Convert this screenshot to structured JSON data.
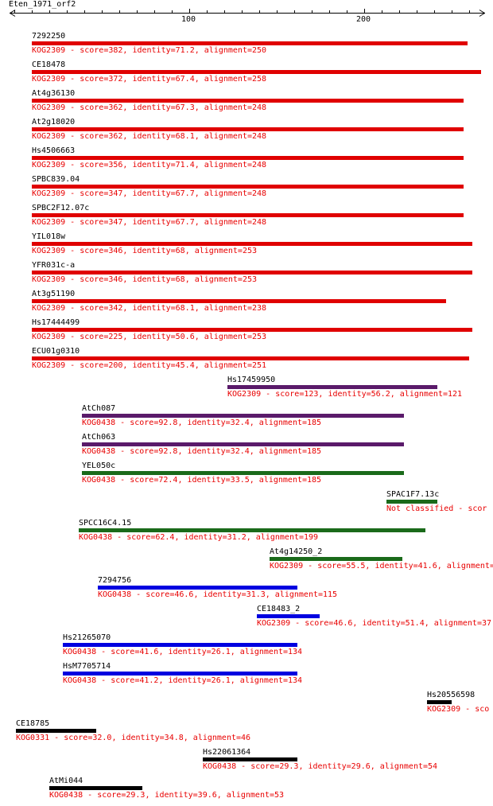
{
  "query": {
    "name": "Eten_1971_orf2",
    "ruler": {
      "min": 1,
      "max": 265,
      "ticks": [
        100,
        200
      ],
      "minor_step": 10
    }
  },
  "colors": {
    "label": "#000000",
    "annotation": "#e80000",
    "bars": {
      "red": "#e00000",
      "purple": "#5a1a6a",
      "green": "#1a6a1a",
      "blue": "#0000e0",
      "black": "#000000"
    }
  },
  "hits": [
    {
      "id": "7292250",
      "kog": "KOG2309",
      "score": "382",
      "identity": "71.2",
      "alignment": "250",
      "start": 10,
      "end": 259,
      "color": "red"
    },
    {
      "id": "CE18478",
      "kog": "KOG2309",
      "score": "372",
      "identity": "67.4",
      "alignment": "258",
      "start": 10,
      "end": 267,
      "color": "red"
    },
    {
      "id": "At4g36130",
      "kog": "KOG2309",
      "score": "362",
      "identity": "67.3",
      "alignment": "248",
      "start": 10,
      "end": 257,
      "color": "red"
    },
    {
      "id": "At2g18020",
      "kog": "KOG2309",
      "score": "362",
      "identity": "68.1",
      "alignment": "248",
      "start": 10,
      "end": 257,
      "color": "red"
    },
    {
      "id": "Hs4506663",
      "kog": "KOG2309",
      "score": "356",
      "identity": "71.4",
      "alignment": "248",
      "start": 10,
      "end": 257,
      "color": "red"
    },
    {
      "id": "SPBC839.04",
      "kog": "KOG2309",
      "score": "347",
      "identity": "67.7",
      "alignment": "248",
      "start": 10,
      "end": 257,
      "color": "red"
    },
    {
      "id": "SPBC2F12.07c",
      "kog": "KOG2309",
      "score": "347",
      "identity": "67.7",
      "alignment": "248",
      "start": 10,
      "end": 257,
      "color": "red"
    },
    {
      "id": "YIL018w",
      "kog": "KOG2309",
      "score": "346",
      "identity": "68",
      "alignment": "253",
      "start": 10,
      "end": 262,
      "color": "red"
    },
    {
      "id": "YFR031c-a",
      "kog": "KOG2309",
      "score": "346",
      "identity": "68",
      "alignment": "253",
      "start": 10,
      "end": 262,
      "color": "red"
    },
    {
      "id": "At3g51190",
      "kog": "KOG2309",
      "score": "342",
      "identity": "68.1",
      "alignment": "238",
      "start": 10,
      "end": 247,
      "color": "red"
    },
    {
      "id": "Hs17444499",
      "kog": "KOG2309",
      "score": "225",
      "identity": "50.6",
      "alignment": "253",
      "start": 10,
      "end": 262,
      "color": "red"
    },
    {
      "id": "ECU01g0310",
      "kog": "KOG2309",
      "score": "200",
      "identity": "45.4",
      "alignment": "251",
      "start": 10,
      "end": 260,
      "color": "red"
    },
    {
      "id": "Hs17459950",
      "kog": "KOG2309",
      "score": "123",
      "identity": "56.2",
      "alignment": "121",
      "start": 122,
      "end": 242,
      "color": "purple"
    },
    {
      "id": "AtCh087",
      "kog": "KOG0438",
      "score": "92.8",
      "identity": "32.4",
      "alignment": "185",
      "start": 39,
      "end": 223,
      "color": "purple"
    },
    {
      "id": "AtCh063",
      "kog": "KOG0438",
      "score": "92.8",
      "identity": "32.4",
      "alignment": "185",
      "start": 39,
      "end": 223,
      "color": "purple"
    },
    {
      "id": "YEL050c",
      "kog": "KOG0438",
      "score": "72.4",
      "identity": "33.5",
      "alignment": "185",
      "start": 39,
      "end": 223,
      "color": "green"
    },
    {
      "id": "SPAC1F7.13c",
      "text": "Not classified - scor",
      "start": 213,
      "end": 242,
      "color": "green"
    },
    {
      "id": "SPCC16C4.15",
      "kog": "KOG0438",
      "score": "62.4",
      "identity": "31.2",
      "alignment": "199",
      "start": 37,
      "end": 235,
      "color": "green"
    },
    {
      "id": "At4g14250_2",
      "text": "KOG2309 - score=55.5, identity=41.6, alignment=",
      "start": 146,
      "end": 222,
      "color": "green"
    },
    {
      "id": "7294756",
      "kog": "KOG0438",
      "score": "46.6",
      "identity": "31.3",
      "alignment": "115",
      "start": 48,
      "end": 162,
      "color": "blue"
    },
    {
      "id": "CE18483_2",
      "text": "KOG2309 - score=46.6, identity=51.4, alignment=37",
      "start": 139,
      "end": 175,
      "color": "blue"
    },
    {
      "id": "Hs21265070",
      "kog": "KOG0438",
      "score": "41.6",
      "identity": "26.1",
      "alignment": "134",
      "start": 28,
      "end": 162,
      "color": "blue"
    },
    {
      "id": "HsM7705714",
      "kog": "KOG0438",
      "score": "41.2",
      "identity": "26.1",
      "alignment": "134",
      "start": 28,
      "end": 162,
      "color": "blue"
    },
    {
      "id": "Hs20556598",
      "text": "KOG2309 - sco",
      "start": 236,
      "end": 250,
      "color": "black"
    },
    {
      "id": "CE18785",
      "kog": "KOG0331",
      "score": "32.0",
      "identity": "34.8",
      "alignment": "46",
      "start": 1,
      "end": 47,
      "color": "black"
    },
    {
      "id": "Hs22061364",
      "kog": "KOG0438",
      "score": "29.3",
      "identity": "29.6",
      "alignment": "54",
      "start": 108,
      "end": 162,
      "color": "black"
    },
    {
      "id": "AtMi044",
      "kog": "KOG0438",
      "score": "29.3",
      "identity": "39.6",
      "alignment": "53",
      "start": 20,
      "end": 73,
      "color": "black"
    }
  ]
}
